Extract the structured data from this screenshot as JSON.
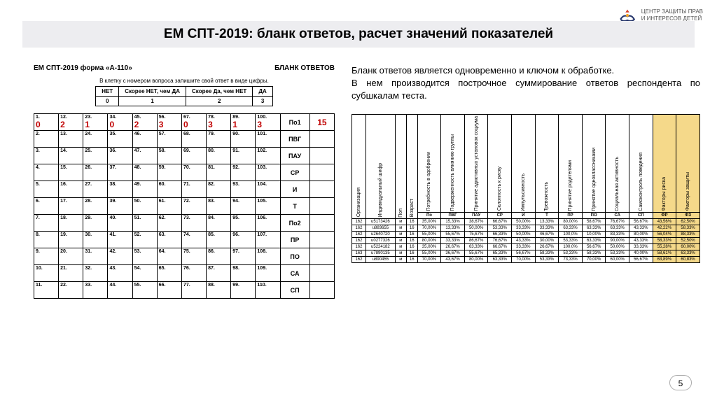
{
  "org": {
    "line1": "ЦЕНТР ЗАЩИТЫ ПРАВ",
    "line2": "И ИНТЕРЕСОВ ДЕТЕЙ"
  },
  "title": "ЕМ СПТ-2019: бланк ответов, расчет значений показателей",
  "form": {
    "left": "ЕМ СПТ-2019 форма «А-110»",
    "right": "БЛАНК ОТВЕТОВ",
    "note": "В клетку с номером вопроса запишите свой ответ в виде цифры."
  },
  "scale": {
    "h": [
      "НЕТ",
      "Скорее НЕТ,\nчем ДА",
      "Скорее Да,\nчем НЕТ",
      "ДА"
    ],
    "v": [
      "0",
      "1",
      "2",
      "3"
    ]
  },
  "rows": [
    {
      "q": [
        "1.",
        "12.",
        "23.",
        "34.",
        "45.",
        "56.",
        "67.",
        "78.",
        "89.",
        "100."
      ],
      "a": [
        "0",
        "2",
        "1",
        "0",
        "2",
        "3",
        "0",
        "3",
        "1",
        "3"
      ],
      "lbl": "По1",
      "sum": "15"
    },
    {
      "q": [
        "2.",
        "13.",
        "24.",
        "35.",
        "46.",
        "57.",
        "68.",
        "79.",
        "90.",
        "101."
      ],
      "lbl": "ПВГ"
    },
    {
      "q": [
        "3.",
        "14.",
        "25.",
        "36.",
        "47.",
        "58.",
        "69.",
        "80.",
        "91.",
        "102."
      ],
      "lbl": "ПАУ"
    },
    {
      "q": [
        "4.",
        "15.",
        "26.",
        "37.",
        "48.",
        "59.",
        "70.",
        "81.",
        "92.",
        "103."
      ],
      "lbl": "СР"
    },
    {
      "q": [
        "5.",
        "16.",
        "27.",
        "38.",
        "49.",
        "60.",
        "71.",
        "82.",
        "93.",
        "104."
      ],
      "lbl": "И"
    },
    {
      "q": [
        "6.",
        "17.",
        "28.",
        "39.",
        "50.",
        "61.",
        "72.",
        "83.",
        "94.",
        "105."
      ],
      "lbl": "Т"
    },
    {
      "q": [
        "7.",
        "18.",
        "29.",
        "40.",
        "51.",
        "62.",
        "73.",
        "84.",
        "95.",
        "106."
      ],
      "lbl": "По2"
    },
    {
      "q": [
        "8.",
        "19.",
        "30.",
        "41.",
        "52.",
        "63.",
        "74.",
        "85.",
        "96.",
        "107."
      ],
      "lbl": "ПР"
    },
    {
      "q": [
        "9.",
        "20.",
        "31.",
        "42.",
        "53.",
        "64.",
        "75.",
        "86.",
        "97.",
        "108."
      ],
      "lbl": "ПО"
    },
    {
      "q": [
        "10.",
        "21.",
        "32.",
        "43.",
        "54.",
        "65.",
        "76.",
        "87.",
        "98.",
        "109."
      ],
      "lbl": "СА"
    },
    {
      "q": [
        "11.",
        "22.",
        "33.",
        "44.",
        "55.",
        "66.",
        "77.",
        "88.",
        "99.",
        "110."
      ],
      "lbl": "СП"
    }
  ],
  "desc": [
    "Бланк ответов является одновременно и ключом к обработке.",
    "В нем производится построчное суммирование ответов респондента по субшкалам теста."
  ],
  "dt": {
    "vcols": [
      "Организация",
      "Индивидуальный шифр",
      "Пол",
      "Возраст",
      "Потребность в одобрении",
      "Подверженность влиянию группы",
      "Принятие адиктивных установок социума",
      "Склонность к риску",
      "Импульсивность",
      "Тревожность",
      "Принятие родителями",
      "Принятие одноклассниками",
      "Социальная активность",
      "Самоконтроль поведения",
      "Факторы риска",
      "Факторы защиты"
    ],
    "hi": [
      14,
      15
    ],
    "ccodes": [
      "По",
      "ПВГ",
      "ПАУ",
      "СР",
      "И",
      "Т",
      "ПР",
      "ПО",
      "СА",
      "СП",
      "ФР",
      "ФЗ"
    ],
    "rows": [
      [
        "162",
        "u5173426",
        "м",
        "16",
        "35,00%",
        "15,33%",
        "38,67%",
        "66,67%",
        "50,00%",
        "13,33%",
        "80,00%",
        "58,67%",
        "76,67%",
        "56,67%",
        "43,56%",
        "62,50%"
      ],
      [
        "162",
        "u883655",
        "м",
        "16",
        "70,00%",
        "13,33%",
        "50,00%",
        "53,33%",
        "33,33%",
        "33,33%",
        "63,33%",
        "63,33%",
        "63,33%",
        "43,33%",
        "42,22%",
        "58,33%"
      ],
      [
        "162",
        "u2640720",
        "м",
        "16",
        "55,00%",
        "55,67%",
        "75,67%",
        "66,33%",
        "50,00%",
        "46,67%",
        "100,0%",
        "10,00%",
        "83,33%",
        "80,00%",
        "56,04%",
        "88,33%"
      ],
      [
        "162",
        "u0277326",
        "м",
        "16",
        "80,00%",
        "33,33%",
        "86,67%",
        "76,67%",
        "43,33%",
        "30,00%",
        "53,33%",
        "63,33%",
        "90,00%",
        "43,33%",
        "58,33%",
        "52,50%"
      ],
      [
        "162",
        "u5224182",
        "м",
        "16",
        "35,00%",
        "26,67%",
        "63,33%",
        "66,67%",
        "33,33%",
        "26,67%",
        "100,0%",
        "56,67%",
        "50,00%",
        "33,33%",
        "55,28%",
        "60,00%"
      ],
      [
        "163",
        "u7890135",
        "м",
        "16",
        "55,00%",
        "36,67%",
        "55,67%",
        "65,33%",
        "56,67%",
        "58,33%",
        "53,33%",
        "58,33%",
        "53,33%",
        "40,00%",
        "58,61%",
        "63,33%"
      ],
      [
        "162",
        "u890455",
        "м",
        "16",
        "70,00%",
        "43,67%",
        "80,00%",
        "63,33%",
        "70,00%",
        "53,33%",
        "73,33%",
        "70,00%",
        "60,00%",
        "56,67%",
        "63,89%",
        "60,83%"
      ]
    ]
  },
  "page": "5"
}
